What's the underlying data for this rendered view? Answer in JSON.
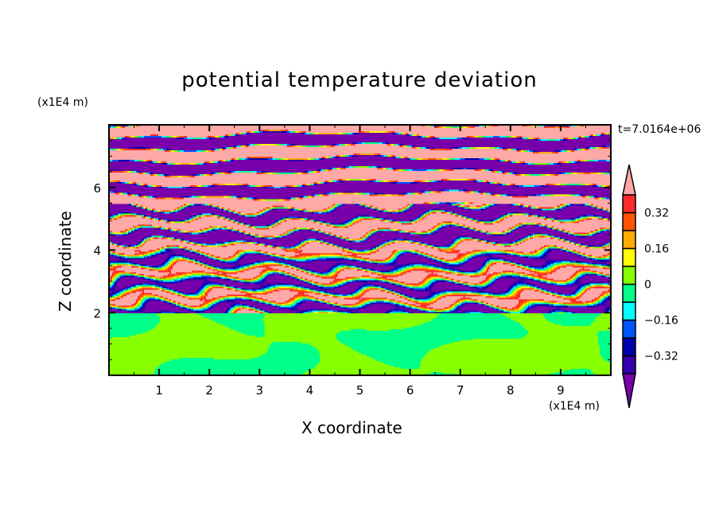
{
  "chart_data": {
    "type": "heatmap",
    "title": "potential temperature deviation",
    "xlabel": "X coordinate",
    "ylabel": "Z coordinate",
    "x_unit": "(x1E4 m)",
    "y_unit": "(x1E4 m)",
    "time_label": "t=7.0164e+06",
    "xlim": [
      0,
      10
    ],
    "ylim": [
      0,
      8
    ],
    "x_ticks": [
      1,
      2,
      3,
      4,
      5,
      6,
      7,
      8,
      9
    ],
    "y_ticks": [
      2,
      4,
      6
    ],
    "levels": [
      -0.4,
      -0.32,
      -0.24,
      -0.16,
      -0.08,
      0,
      0.08,
      0.16,
      0.24,
      0.32,
      0.4
    ],
    "colorbar_labels": [
      "0.32",
      "0.16",
      "0",
      "-0.16",
      "-0.32"
    ],
    "colorbar_label_values": [
      0.32,
      0.16,
      0,
      -0.16,
      -0.32
    ],
    "colors": [
      "#7700aa",
      "#3300aa",
      "#0000aa",
      "#0055ff",
      "#00ffff",
      "#00ff88",
      "#88ff00",
      "#ffff00",
      "#ffaa00",
      "#ff5500",
      "#ff2a2a",
      "#ffa8a8"
    ],
    "extend": "both",
    "grid": false
  }
}
